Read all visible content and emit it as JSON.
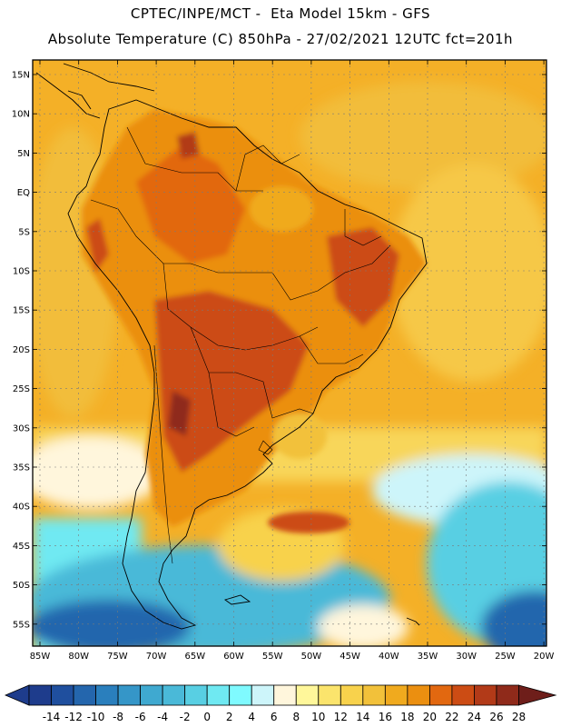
{
  "header": {
    "line1": "CPTEC/INPE/MCT -  Eta Model 15km - GFS",
    "line2": "Absolute Temperature (C) 850hPa - 27/02/2021 12UTC fct=201h"
  },
  "lat_labels": [
    "15N",
    "10N",
    "5N",
    "EQ",
    "5S",
    "10S",
    "15S",
    "20S",
    "25S",
    "30S",
    "35S",
    "40S",
    "45S",
    "50S",
    "55S"
  ],
  "lon_labels": [
    "85W",
    "80W",
    "75W",
    "70W",
    "65W",
    "60W",
    "55W",
    "50W",
    "45W",
    "40W",
    "35W",
    "30W",
    "25W",
    "20W"
  ],
  "colorbar": {
    "labels": [
      "-14",
      "-12",
      "-10",
      "-8",
      "-6",
      "-4",
      "-2",
      "0",
      "2",
      "4",
      "6",
      "8",
      "10",
      "12",
      "14",
      "16",
      "18",
      "20",
      "22",
      "24",
      "26",
      "28"
    ],
    "colors": [
      "#1e3c8c",
      "#1f4f9e",
      "#2466ad",
      "#2a7fbd",
      "#3596c8",
      "#3fa9d0",
      "#4ab9d8",
      "#58cfe3",
      "#6fe9f2",
      "#7ffaff",
      "#cdf5fa",
      "#fff6dc",
      "#fff79a",
      "#fbe46c",
      "#f8d24c",
      "#f2c13a",
      "#f0aa1e",
      "#eb8f10",
      "#e26810",
      "#cc4c14",
      "#b23a18",
      "#8f2a1a",
      "#6e1e1a"
    ]
  }
}
